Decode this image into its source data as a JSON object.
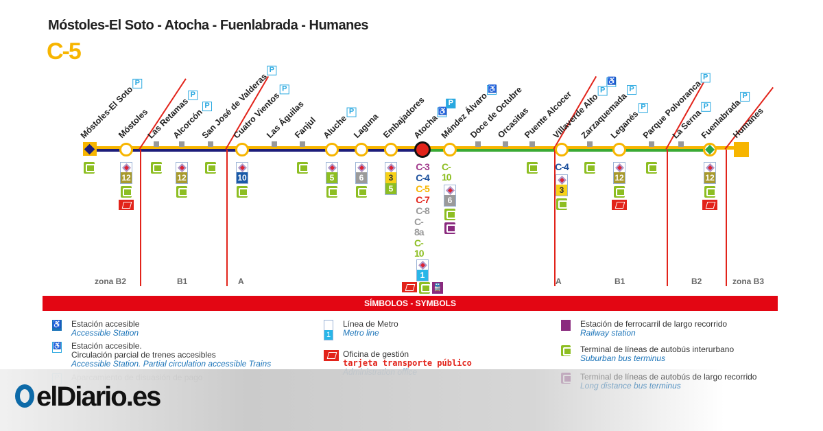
{
  "title": "Móstoles-El Soto - Atocha - Fuenlabrada - Humanes",
  "line_code": "C-5",
  "colors": {
    "c5": "#f7b500",
    "c3": "#a0398b",
    "c4": "#1b4f9c",
    "c7": "#e2231a",
    "c8": "#999999",
    "c10": "#8dbe22",
    "zone": "#e2231a",
    "symbols_bar": "#e30613"
  },
  "stations": [
    {
      "name": "Móstoles-El Soto",
      "type": "terminal-start",
      "above": [
        "P"
      ],
      "below": [
        "bus"
      ]
    },
    {
      "name": "Móstoles",
      "type": "interchange",
      "above": [],
      "below": [
        "metro:12",
        "bus",
        "card"
      ]
    },
    {
      "name": "Las Retamas",
      "type": "minor",
      "above": [
        "P"
      ],
      "below": [
        "bus"
      ]
    },
    {
      "name": "Alcorcón",
      "type": "minor",
      "above": [
        "P"
      ],
      "below": [
        "metro:12",
        "bus"
      ]
    },
    {
      "name": "San José de Valderas",
      "type": "minor",
      "above": [
        "P"
      ],
      "below": [
        "bus"
      ]
    },
    {
      "name": "Cuatro Vientos",
      "type": "interchange",
      "above": [
        "P"
      ],
      "below": [
        "metro:10",
        "bus"
      ]
    },
    {
      "name": "Las Águilas",
      "type": "minor",
      "above": [],
      "below": []
    },
    {
      "name": "Fanjul",
      "type": "minor",
      "above": [],
      "below": [
        "bus"
      ]
    },
    {
      "name": "Aluche",
      "type": "interchange",
      "above": [
        "P"
      ],
      "below": [
        "metro:5",
        "bus"
      ]
    },
    {
      "name": "Laguna",
      "type": "interchange",
      "above": [],
      "below": [
        "metro:6",
        "bus"
      ]
    },
    {
      "name": "Embajadores",
      "type": "interchange",
      "above": [],
      "below": [
        "metro:3,5"
      ]
    },
    {
      "name": "Atocha",
      "type": "hub",
      "above": [
        "accessible",
        "P"
      ],
      "below": [
        "C-3",
        "C-4",
        "C-5",
        "C-7",
        "C-8",
        "C-8a",
        "C-10",
        "metro:1",
        "card+bus+rail"
      ]
    },
    {
      "name": "Méndez Álvaro",
      "type": "interchange",
      "above": [
        "accessible-partial"
      ],
      "below": [
        "C-10",
        "metro:6",
        "bus",
        "ldbus"
      ]
    },
    {
      "name": "Doce de Octubre",
      "type": "minor",
      "above": [],
      "below": []
    },
    {
      "name": "Orcasitas",
      "type": "minor",
      "above": [],
      "below": []
    },
    {
      "name": "Puente Alcocer",
      "type": "minor",
      "above": [],
      "below": [
        "bus"
      ]
    },
    {
      "name": "Villaverde Alto",
      "type": "interchange",
      "above": [
        "P",
        "accessible-partial"
      ],
      "below": [
        "C-4",
        "metro:3",
        "bus"
      ]
    },
    {
      "name": "Zarzaquemada",
      "type": "minor",
      "above": [
        "P"
      ],
      "below": [
        "bus"
      ]
    },
    {
      "name": "Leganés",
      "type": "interchange",
      "above": [
        "P"
      ],
      "below": [
        "metro:12",
        "bus",
        "card"
      ]
    },
    {
      "name": "Parque Polvoranca",
      "type": "minor",
      "above": [
        "P"
      ],
      "below": [
        "bus"
      ]
    },
    {
      "name": "La Serna",
      "type": "minor",
      "above": [
        "P"
      ],
      "below": []
    },
    {
      "name": "Fuenlabrada",
      "type": "branch",
      "above": [
        "P"
      ],
      "below": [
        "metro:12",
        "bus",
        "card"
      ]
    },
    {
      "name": "Humanes",
      "type": "terminal-end",
      "above": [],
      "below": []
    }
  ],
  "zones": [
    "zona B2",
    "B1",
    "A",
    "A",
    "B1",
    "B2",
    "zona B3"
  ],
  "legend": {
    "header": "SÍMBOLOS - SYMBOLS",
    "items": [
      {
        "es": "Estación accesible",
        "en": "Accessible Station",
        "icon": "accessible-icon"
      },
      {
        "es": "Estación accesible.",
        "es2": "Circulación parcial de trenes accesibles",
        "en": "Accessible Station. Partial circulation accessible Trains",
        "icon": "accessible-partial-icon"
      },
      {
        "es": "Aparcamiento de disuasión de pago",
        "icon": "parking-icon"
      },
      {
        "es": "Línea de Metro",
        "en": "Metro line",
        "icon": "metro-line-icon"
      },
      {
        "es": "Oficina de gestión",
        "es_red": "tarjeta transporte público",
        "en": "Administration office",
        "icon": "card-office-icon"
      },
      {
        "es": "Estación de ferrocarril de largo recorrido",
        "en": "Railway station",
        "icon": "railway-icon"
      },
      {
        "es": "Terminal de líneas de autobús interurbano",
        "en": "Suburban bus terminus",
        "icon": "bus-icon"
      },
      {
        "es": "Terminal de líneas de autobús de largo recorrido",
        "en": "Long distance bus terminus",
        "icon": "long-distance-bus-icon"
      }
    ]
  },
  "logo": "elDiario.es"
}
